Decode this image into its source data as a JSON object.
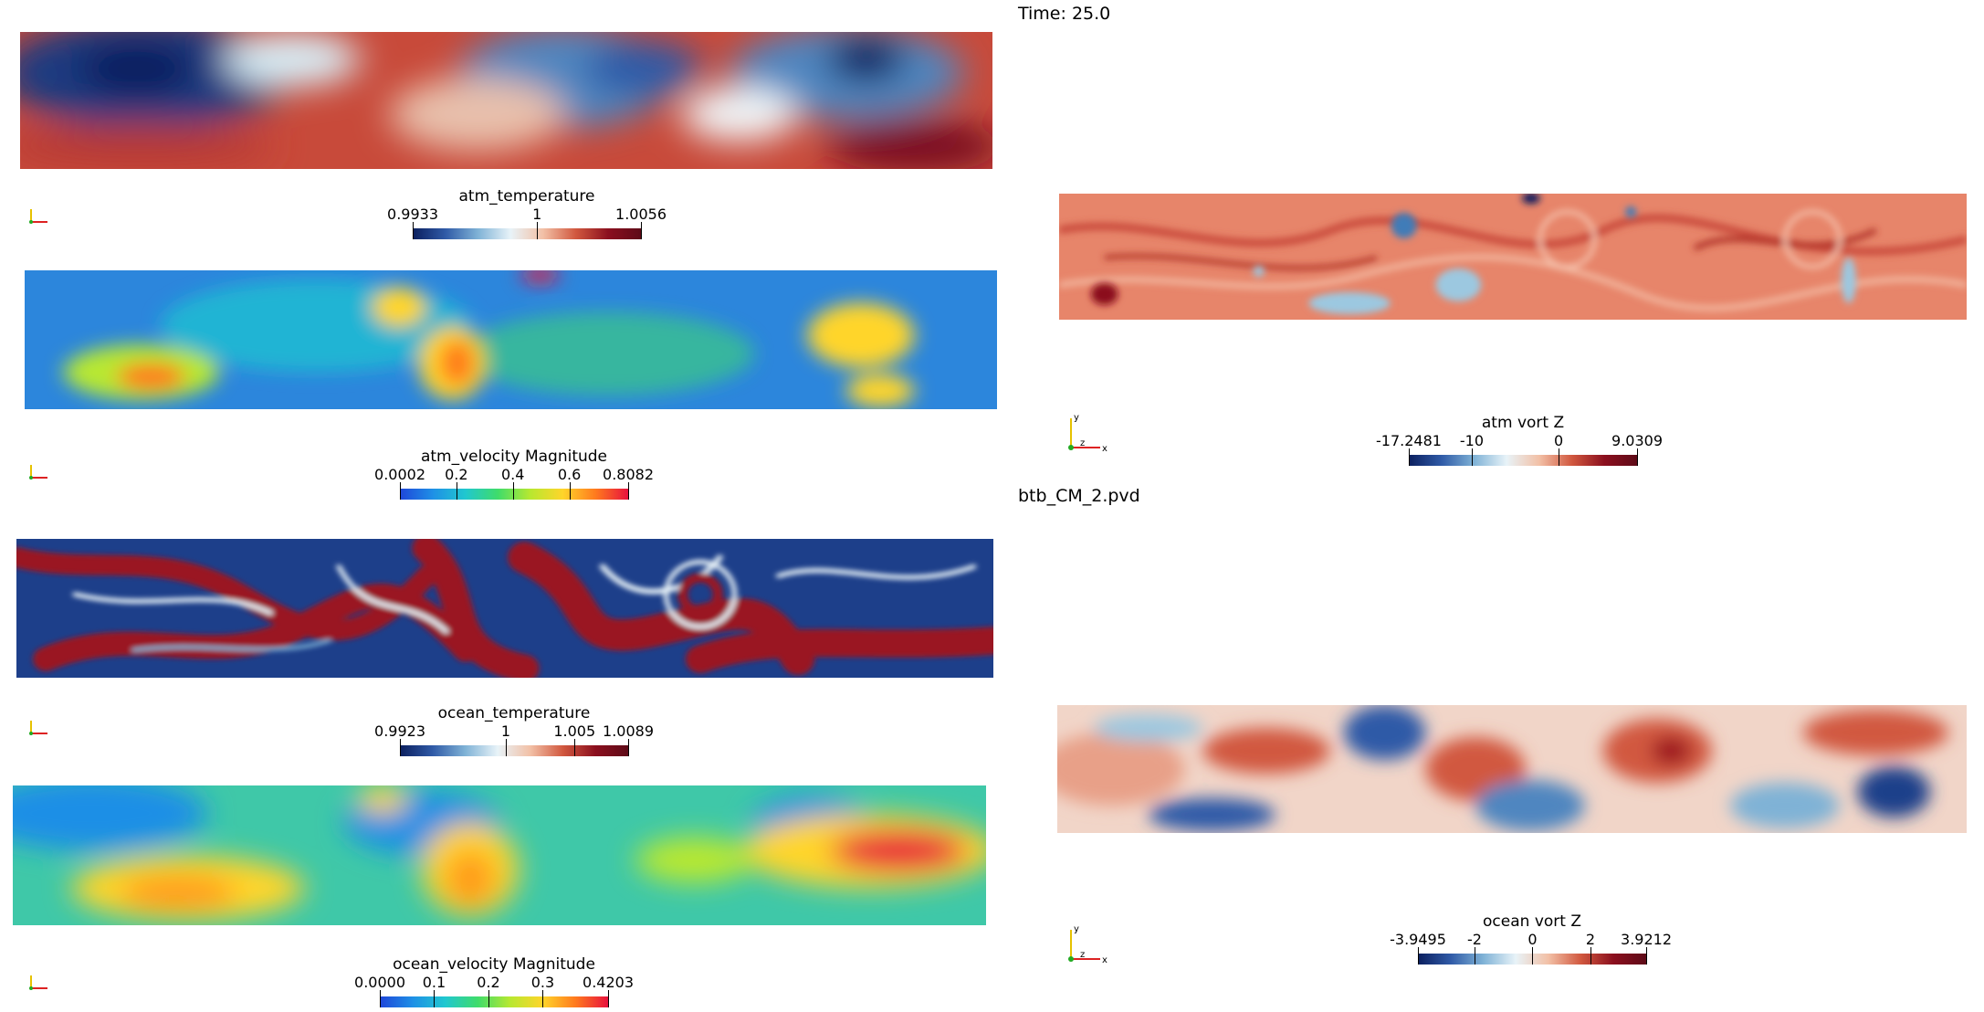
{
  "time_label": "Time: 25.0",
  "file_label": "btb_CM_2.pvd",
  "colors": {
    "coolwarm": [
      "#0b1f5e",
      "#2f5aa7",
      "#7fb2d6",
      "#e8f3f8",
      "#f2c0a6",
      "#d1583f",
      "#8b0f1e",
      "#5e0b18"
    ],
    "jet": [
      "#1f46d9",
      "#1f8fe6",
      "#20c7d0",
      "#3fdc6b",
      "#b8e830",
      "#ffd52a",
      "#ff7a1e",
      "#e8123d"
    ]
  },
  "panels": {
    "atm_temperature": {
      "title": "atm_temperature",
      "ticks": [
        {
          "v": "0.9933"
        },
        {
          "v": "1"
        },
        {
          "v": "1.0056"
        }
      ],
      "range": [
        0.9933,
        1.0056
      ]
    },
    "atm_velocity": {
      "title": "atm_velocity Magnitude",
      "ticks": [
        {
          "v": "0.0002"
        },
        {
          "v": "0.2"
        },
        {
          "v": "0.4"
        },
        {
          "v": "0.6"
        },
        {
          "v": "0.8082"
        }
      ],
      "range": [
        0.0002,
        0.8082
      ]
    },
    "ocean_temperature": {
      "title": "ocean_temperature",
      "ticks": [
        {
          "v": "0.9923"
        },
        {
          "v": "1"
        },
        {
          "v": "1.005"
        },
        {
          "v": "1.0089"
        }
      ],
      "range": [
        0.9923,
        1.0089
      ]
    },
    "ocean_velocity": {
      "title": "ocean_velocity Magnitude",
      "ticks": [
        {
          "v": "0.0000"
        },
        {
          "v": "0.1"
        },
        {
          "v": "0.2"
        },
        {
          "v": "0.3"
        },
        {
          "v": "0.4203"
        }
      ],
      "range": [
        0.0,
        0.4203
      ]
    },
    "atm_vort": {
      "title": "atm vort Z",
      "ticks": [
        {
          "v": "-17.2481"
        },
        {
          "v": "-10"
        },
        {
          "v": "0"
        },
        {
          "v": "9.0309"
        }
      ],
      "range": [
        -17.2481,
        9.0309
      ]
    },
    "ocean_vort": {
      "title": "ocean vort Z",
      "ticks": [
        {
          "v": "-3.9495"
        },
        {
          "v": "-2"
        },
        {
          "v": "0"
        },
        {
          "v": "2"
        },
        {
          "v": "3.9212"
        }
      ],
      "range": [
        -3.9495,
        3.9212
      ]
    }
  },
  "axes_labels": {
    "x": "x",
    "y": "y",
    "z": "z"
  }
}
